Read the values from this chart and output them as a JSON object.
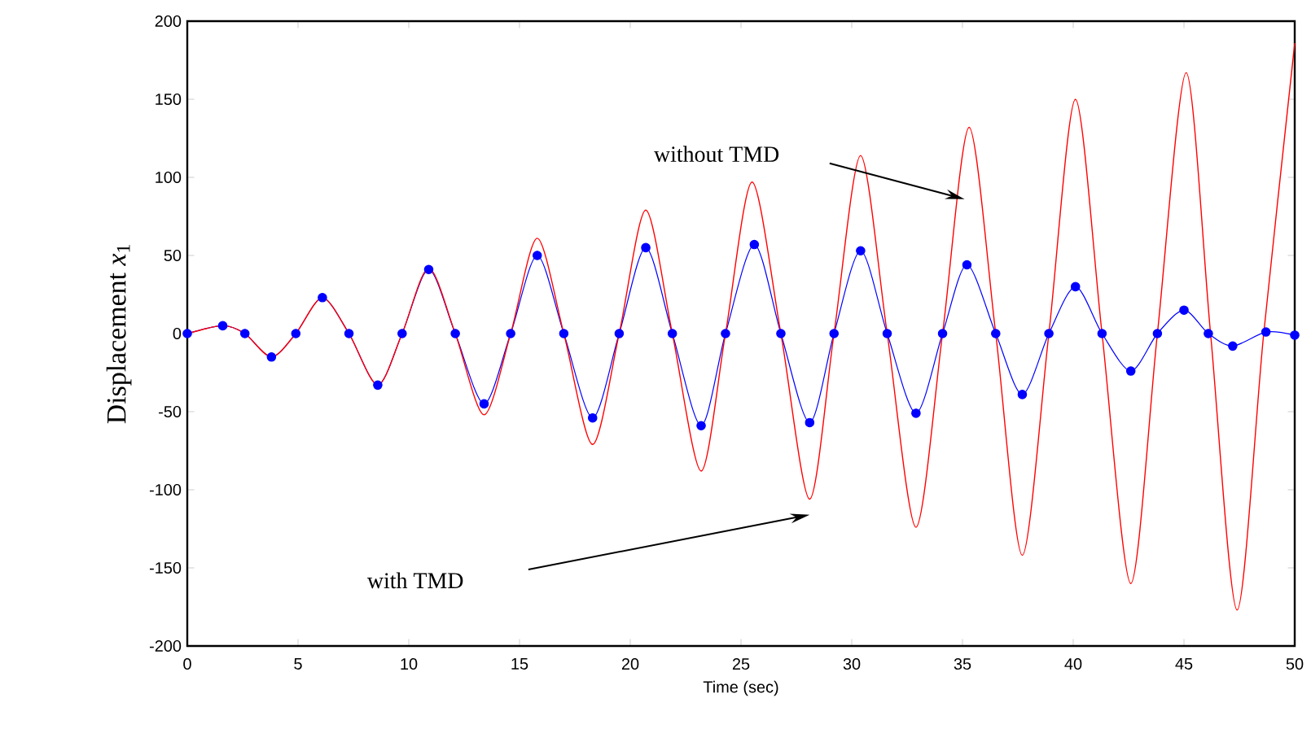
{
  "chart_data": {
    "type": "line",
    "xlabel": "Time (sec)",
    "ylabel": "Displacement *x*$_{1}$",
    "xlim": [
      0,
      50
    ],
    "ylim": [
      -200,
      200
    ],
    "xticks": [
      0,
      5,
      10,
      15,
      20,
      25,
      30,
      35,
      40,
      45,
      50
    ],
    "yticks": [
      -200,
      -150,
      -100,
      -50,
      0,
      50,
      100,
      150,
      200
    ],
    "grid": false,
    "series": [
      {
        "color": "#ff0000",
        "marker": "none",
        "x": [
          0,
          1.6,
          2.6,
          3.8,
          4.9,
          6.1,
          7.3,
          8.6,
          9.7,
          10.9,
          12.1,
          13.4,
          14.6,
          15.8,
          17.0,
          18.3,
          19.5,
          20.7,
          21.9,
          23.2,
          24.3,
          25.5,
          26.8,
          28.1,
          29.2,
          30.4,
          31.6,
          32.9,
          34.1,
          35.3,
          36.5,
          37.7,
          38.9,
          40.1,
          41.3,
          42.6,
          43.8,
          45.1,
          46.2,
          47.4,
          48.6,
          50
        ],
        "values": [
          0,
          5,
          0,
          -15,
          0,
          23,
          0,
          -33,
          0,
          42,
          0,
          -52,
          0,
          61,
          0,
          -71,
          0,
          79,
          0,
          -88,
          0,
          97,
          0,
          -106,
          0,
          114,
          0,
          -124,
          0,
          132,
          0,
          -142,
          0,
          150,
          0,
          -160,
          0,
          167,
          0,
          -177,
          0,
          186
        ]
      },
      {
        "color": "#0000ff",
        "marker": "circle",
        "x": [
          0,
          1.6,
          2.6,
          3.8,
          4.9,
          6.1,
          7.3,
          8.6,
          9.7,
          10.9,
          12.1,
          13.4,
          14.6,
          15.8,
          17.0,
          18.3,
          19.5,
          20.7,
          21.9,
          23.2,
          24.3,
          25.6,
          26.8,
          28.1,
          29.2,
          30.4,
          31.6,
          32.9,
          34.1,
          35.2,
          36.5,
          37.7,
          38.9,
          40.1,
          41.3,
          42.6,
          43.8,
          45.0,
          46.1,
          47.2,
          48.7,
          50
        ],
        "values": [
          0,
          5,
          0,
          -15,
          0,
          23,
          0,
          -33,
          0,
          41,
          0,
          -45,
          0,
          50,
          0,
          -54,
          0,
          55,
          0,
          -59,
          0,
          57,
          0,
          -57,
          0,
          53,
          0,
          -51,
          0,
          44,
          0,
          -39,
          0,
          30,
          0,
          -24,
          0,
          15,
          0,
          -8,
          1,
          -1
        ]
      }
    ],
    "annotations": [
      "without TMD",
      "with TMD"
    ]
  }
}
